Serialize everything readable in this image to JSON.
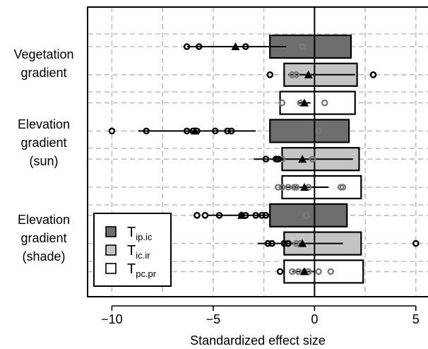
{
  "chart_data": {
    "type": "bar",
    "orientation": "horizontal",
    "xlabel": "Standardized effect size",
    "xlim": [
      -11.2,
      5.6
    ],
    "xticks": [
      -10,
      -5,
      0,
      5
    ],
    "xtick_labels": [
      "−10",
      "−5",
      "0",
      "5"
    ],
    "grid": true,
    "legend_placement": "bottom-left",
    "series": [
      {
        "key": "ip_ic",
        "symbol": "T",
        "subscript": "ip.ic",
        "color": "#6e6e6e"
      },
      {
        "key": "ic_ir",
        "symbol": "T",
        "subscript": "ic.ir",
        "color": "#c4c4c4"
      },
      {
        "key": "pc_pr",
        "symbol": "T",
        "subscript": "pc.pr",
        "color": "#ffffff"
      }
    ],
    "groups": [
      {
        "label_lines": [
          "Vegetation",
          "gradient"
        ],
        "rows": [
          {
            "series": "ip_ic",
            "bar": [
              -2.2,
              1.8
            ],
            "ci": [
              -6.3,
              -1.4
            ],
            "mean": -3.9,
            "points_black": [
              -6.3,
              -5.7,
              -3.4
            ],
            "points_grey": [
              -0.6
            ]
          },
          {
            "series": "ic_ir",
            "bar": [
              -1.5,
              2.1
            ],
            "ci": [
              -1.3,
              2.0
            ],
            "mean": -0.3,
            "points_black": [
              -2.2,
              2.9
            ],
            "points_grey": [
              -1.1,
              -0.9
            ]
          },
          {
            "series": "pc_pr",
            "bar": [
              -1.7,
              2.0
            ],
            "ci": [
              -0.8,
              -0.2
            ],
            "mean": -0.5,
            "points_black": [],
            "points_grey": [
              -1.6,
              -0.7,
              0.5
            ]
          }
        ]
      },
      {
        "label_lines": [
          "Elevation",
          "gradient",
          "(sun)"
        ],
        "rows": [
          {
            "series": "ip_ic",
            "bar": [
              -2.2,
              1.7
            ],
            "ci": [
              -8.7,
              -2.9
            ],
            "mean": -5.9,
            "points_black": [
              -10.0,
              -8.3,
              -6.3,
              -6.0,
              -5.8,
              -4.9,
              -4.3,
              -4.1
            ],
            "points_grey": [
              0.2
            ]
          },
          {
            "series": "ic_ir",
            "bar": [
              -1.6,
              2.2
            ],
            "ci": [
              -3.0,
              1.9
            ],
            "mean": -0.6,
            "points_black": [
              -2.4,
              -1.9,
              -1.8,
              6.1
            ],
            "points_grey": [
              -1.6,
              -0.1
            ]
          },
          {
            "series": "pc_pr",
            "bar": [
              -1.6,
              2.3
            ],
            "ci": [
              -1.4,
              0.7
            ],
            "mean": -0.5,
            "points_black": [],
            "points_grey": [
              -1.8,
              -1.6,
              -1.3,
              -1.0,
              -0.9,
              -0.3,
              1.3,
              1.4
            ]
          }
        ]
      },
      {
        "label_lines": [
          "Elevation",
          "gradient",
          "(shade)"
        ],
        "rows": [
          {
            "series": "ip_ic",
            "bar": [
              -2.2,
              1.6
            ],
            "ci": [
              -5.3,
              -2.2
            ],
            "mean": -3.6,
            "points_black": [
              -5.8,
              -5.4,
              -4.7,
              -3.6,
              -3.4,
              -2.9,
              -2.6,
              -2.4
            ],
            "points_grey": [
              -0.4
            ]
          },
          {
            "series": "ic_ir",
            "bar": [
              -1.5,
              2.3
            ],
            "ci": [
              -2.8,
              1.4
            ],
            "mean": -0.6,
            "points_black": [
              -2.3,
              -2.1,
              -1.5,
              -1.3,
              5.0
            ],
            "points_grey": [
              -0.9,
              -0.7
            ]
          },
          {
            "series": "pc_pr",
            "bar": [
              -1.5,
              2.4
            ],
            "ci": [
              -1.1,
              0.1
            ],
            "mean": -0.5,
            "points_black": [
              -1.7
            ],
            "points_grey": [
              -1.1,
              -0.8,
              -0.5,
              -0.3,
              0.2,
              0.8
            ]
          }
        ]
      }
    ]
  }
}
